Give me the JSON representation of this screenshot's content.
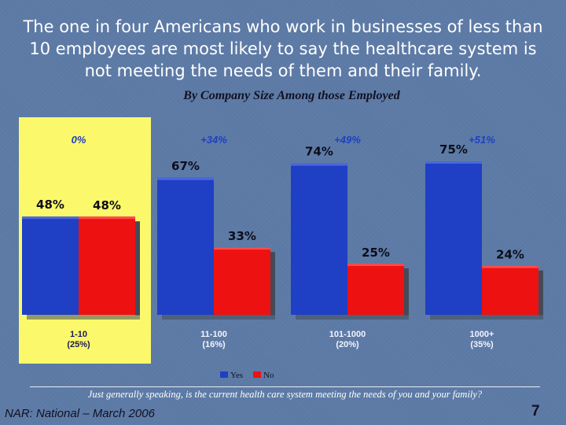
{
  "slide": {
    "title": "The one in four Americans who work in businesses of less than 10 employees are most likely to say the healthcare system is not meeting the needs of them and their family.",
    "question": "Just generally speaking, is the current health care system meeting the needs of you and your family?",
    "source": "NAR: National – March 2006",
    "page_number": "7"
  },
  "colors": {
    "yes": "#1f3fc4",
    "no": "#ee1111",
    "highlight_panel": "#fbf96b",
    "net_label": "#1f3fc4"
  },
  "chart_data": {
    "type": "bar",
    "title": "By Company Size Among those Employed",
    "categories": [
      "1-10\n(25%)",
      "11-100\n(16%)",
      "101-1000\n(20%)",
      "1000+\n(35%)"
    ],
    "series": [
      {
        "name": "Yes",
        "values": [
          48,
          67,
          74,
          75
        ],
        "labels": [
          "48%",
          "67%",
          "74%",
          "75%"
        ]
      },
      {
        "name": "No",
        "values": [
          48,
          33,
          25,
          24
        ],
        "labels": [
          "48%",
          "33%",
          "25%",
          "24%"
        ]
      }
    ],
    "net_labels": [
      "0%",
      "+34%",
      "+49%",
      "+51%"
    ],
    "highlighted_category": 0,
    "ylim": [
      0,
      100
    ],
    "grid": false,
    "legend": "bottom-center"
  }
}
